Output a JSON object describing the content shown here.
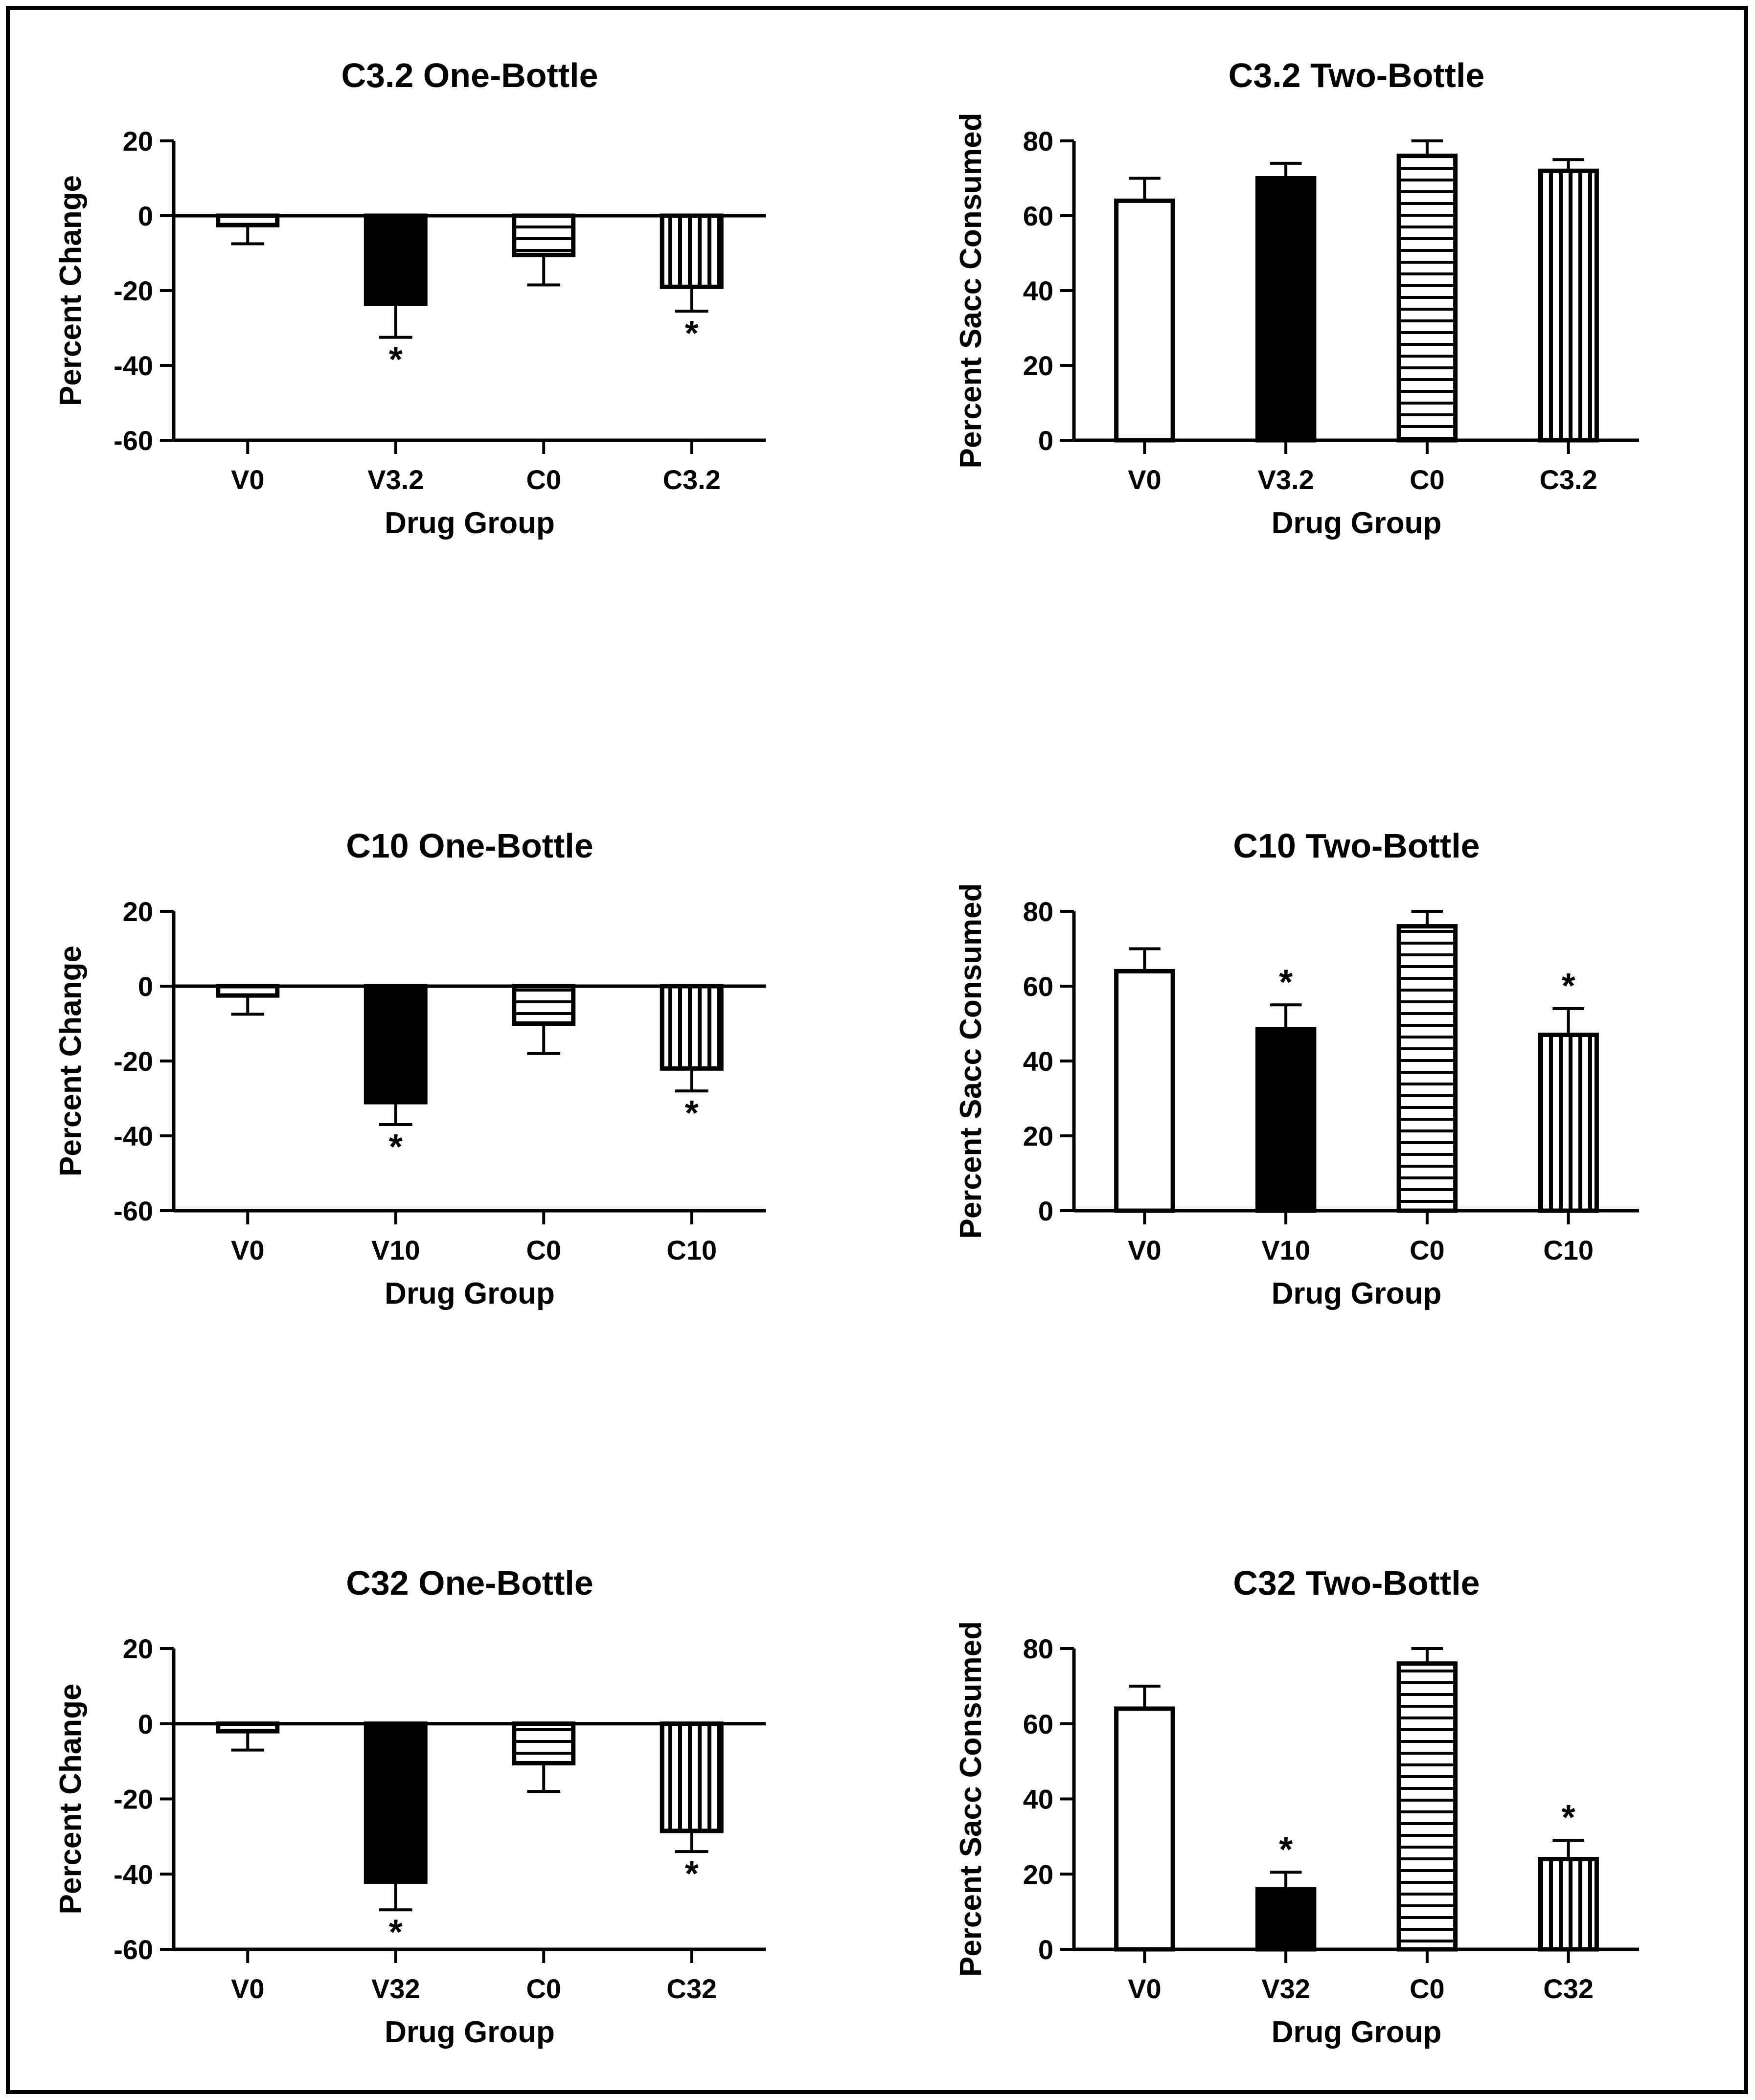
{
  "chart_data": [
    {
      "type": "bar",
      "title": "C3.2 One-Bottle",
      "xlabel": "Drug Group",
      "ylabel": "Percent Change",
      "ylim": [
        -60,
        20
      ],
      "yticks": [
        20,
        0,
        -20,
        -40,
        -60
      ],
      "categories": [
        "V0",
        "V3.2",
        "C0",
        "C3.2"
      ],
      "values": [
        -2.5,
        -23.5,
        -10.5,
        -19
      ],
      "errors": [
        5,
        9,
        8,
        6.5
      ],
      "patterns": [
        "white",
        "black",
        "hlines",
        "vlines"
      ],
      "significant": [
        false,
        true,
        false,
        true
      ]
    },
    {
      "type": "bar",
      "title": "C3.2 Two-Bottle",
      "xlabel": "Drug Group",
      "ylabel": "Percent Sacc Consumed",
      "ylim": [
        0,
        80
      ],
      "yticks": [
        80,
        60,
        40,
        20,
        0
      ],
      "categories": [
        "V0",
        "V3.2",
        "C0",
        "C3.2"
      ],
      "values": [
        64,
        70,
        76,
        72
      ],
      "errors": [
        6,
        4,
        4,
        3
      ],
      "patterns": [
        "white",
        "black",
        "hlines",
        "vlines"
      ],
      "significant": [
        false,
        false,
        false,
        false
      ]
    },
    {
      "type": "bar",
      "title": "C10 One-Bottle",
      "xlabel": "Drug Group",
      "ylabel": "Percent Change",
      "ylim": [
        -60,
        20
      ],
      "yticks": [
        20,
        0,
        -20,
        -40,
        -60
      ],
      "categories": [
        "V0",
        "V10",
        "C0",
        "C10"
      ],
      "values": [
        -2.5,
        -31,
        -10,
        -22
      ],
      "errors": [
        5,
        6,
        8,
        6
      ],
      "patterns": [
        "white",
        "black",
        "hlines",
        "vlines"
      ],
      "significant": [
        false,
        true,
        false,
        true
      ]
    },
    {
      "type": "bar",
      "title": "C10 Two-Bottle",
      "xlabel": "Drug Group",
      "ylabel": "Percent Sacc Consumed",
      "ylim": [
        0,
        80
      ],
      "yticks": [
        80,
        60,
        40,
        20,
        0
      ],
      "categories": [
        "V0",
        "V10",
        "C0",
        "C10"
      ],
      "values": [
        64,
        48.5,
        76,
        47
      ],
      "errors": [
        6,
        6.5,
        4,
        7
      ],
      "patterns": [
        "white",
        "black",
        "hlines",
        "vlines"
      ],
      "significant": [
        false,
        true,
        false,
        true
      ]
    },
    {
      "type": "bar",
      "title": "C32 One-Bottle",
      "xlabel": "Drug Group",
      "ylabel": "Percent Change",
      "ylim": [
        -60,
        20
      ],
      "yticks": [
        20,
        0,
        -20,
        -40,
        -60
      ],
      "categories": [
        "V0",
        "V32",
        "C0",
        "C32"
      ],
      "values": [
        -2,
        -42,
        -10.5,
        -28.5
      ],
      "errors": [
        5,
        7.5,
        7.5,
        5.5
      ],
      "patterns": [
        "white",
        "black",
        "hlines",
        "vlines"
      ],
      "significant": [
        false,
        true,
        false,
        true
      ]
    },
    {
      "type": "bar",
      "title": "C32 Two-Bottle",
      "xlabel": "Drug Group",
      "ylabel": "Percent Sacc Consumed",
      "ylim": [
        0,
        80
      ],
      "yticks": [
        80,
        60,
        40,
        20,
        0
      ],
      "categories": [
        "V0",
        "V32",
        "C0",
        "C32"
      ],
      "values": [
        64,
        16,
        76,
        24
      ],
      "errors": [
        6,
        4.5,
        4,
        5
      ],
      "patterns": [
        "white",
        "black",
        "hlines",
        "vlines"
      ],
      "significant": [
        false,
        true,
        false,
        true
      ]
    }
  ],
  "significance_marker": "*",
  "colors": {
    "ink": "#000000",
    "paper": "#ffffff"
  }
}
